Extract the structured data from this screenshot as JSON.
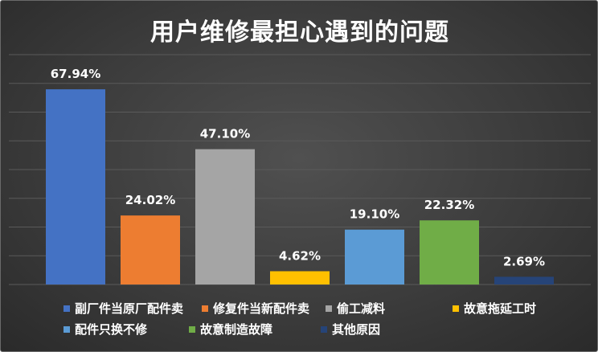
{
  "chart_data": {
    "type": "bar",
    "title": "用户维修最担心遇到的问题",
    "xlabel": "",
    "ylabel": "",
    "ylim": [
      0,
      80
    ],
    "grid": true,
    "legend_position": "bottom",
    "categories": [
      "副厂件当原厂配件卖",
      "修复件当新配件卖",
      "偷工减料",
      "故意拖延工时",
      "配件只换不修",
      "故意制造故障",
      "其他原因"
    ],
    "values": [
      67.94,
      24.02,
      47.1,
      4.62,
      19.1,
      22.32,
      2.69
    ],
    "data_labels": [
      "67.94%",
      "24.02%",
      "47.10%",
      "4.62%",
      "19.10%",
      "22.32%",
      "2.69%"
    ],
    "colors": [
      "#4472C4",
      "#ED7D31",
      "#A5A5A5",
      "#FFC000",
      "#5B9BD5",
      "#70AD47",
      "#264478"
    ]
  },
  "legend": {
    "items": [
      {
        "label": "副厂件当原厂配件卖",
        "color": "#4472C4"
      },
      {
        "label": "修复件当新配件卖",
        "color": "#ED7D31"
      },
      {
        "label": "偷工减料",
        "color": "#A5A5A5"
      },
      {
        "label": "故意拖延工时",
        "color": "#FFC000"
      },
      {
        "label": "配件只换不修",
        "color": "#5B9BD5"
      },
      {
        "label": "故意制造故障",
        "color": "#70AD47"
      },
      {
        "label": "其他原因",
        "color": "#264478"
      }
    ]
  }
}
